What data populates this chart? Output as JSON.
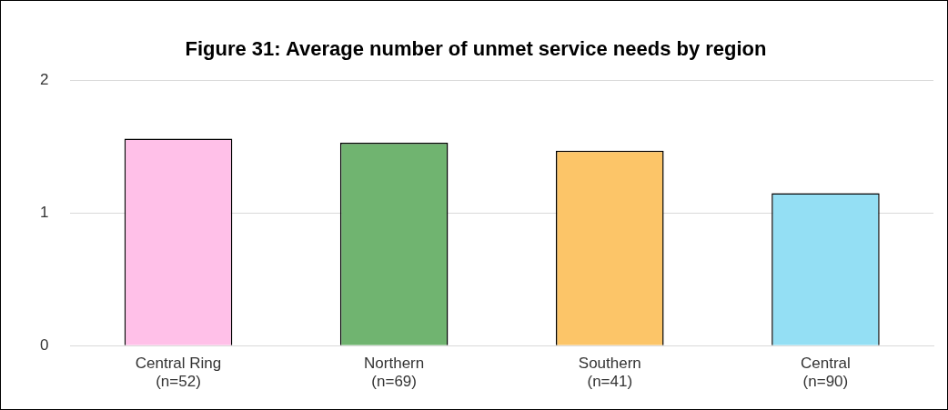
{
  "chart_data": {
    "type": "bar",
    "title": "Figure 31: Average number of unmet service needs by region",
    "categories": [
      "Central Ring\n(n=52)",
      "Northern\n(n=69)",
      "Southern\n(n=41)",
      "Central\n(n=90)"
    ],
    "values": [
      1.56,
      1.53,
      1.47,
      1.15
    ],
    "colors": [
      "#ffc0e8",
      "#70b470",
      "#fcc568",
      "#94dff4"
    ],
    "ylim": [
      0,
      2
    ],
    "yticks": [
      0,
      1,
      2
    ],
    "grid": "y"
  }
}
